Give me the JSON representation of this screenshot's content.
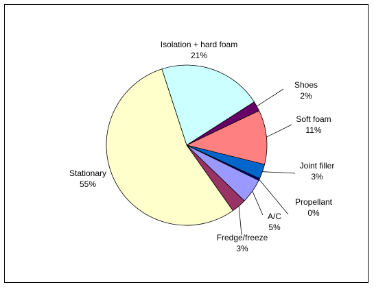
{
  "chart_data": {
    "type": "pie",
    "title": "",
    "slices": [
      {
        "name": "Isolation + hard foam",
        "pct_label": "21%",
        "value": 21,
        "color": "#ccffff"
      },
      {
        "name": "Shoes",
        "pct_label": "2%",
        "value": 2,
        "color": "#660066"
      },
      {
        "name": "Soft foam",
        "pct_label": "11%",
        "value": 11,
        "color": "#ff8080"
      },
      {
        "name": "Joint filler",
        "pct_label": "3%",
        "value": 3,
        "color": "#0066cc"
      },
      {
        "name": "Propellant",
        "pct_label": "0%",
        "value": 0.4,
        "color": "#000080"
      },
      {
        "name": "A/C",
        "pct_label": "5%",
        "value": 5,
        "color": "#9999ff"
      },
      {
        "name": "Fredge/freeze",
        "pct_label": "3%",
        "value": 3,
        "color": "#993366"
      },
      {
        "name": "Stationary",
        "pct_label": "55%",
        "value": 55,
        "color": "#ffffcc"
      }
    ],
    "legend": "none"
  }
}
